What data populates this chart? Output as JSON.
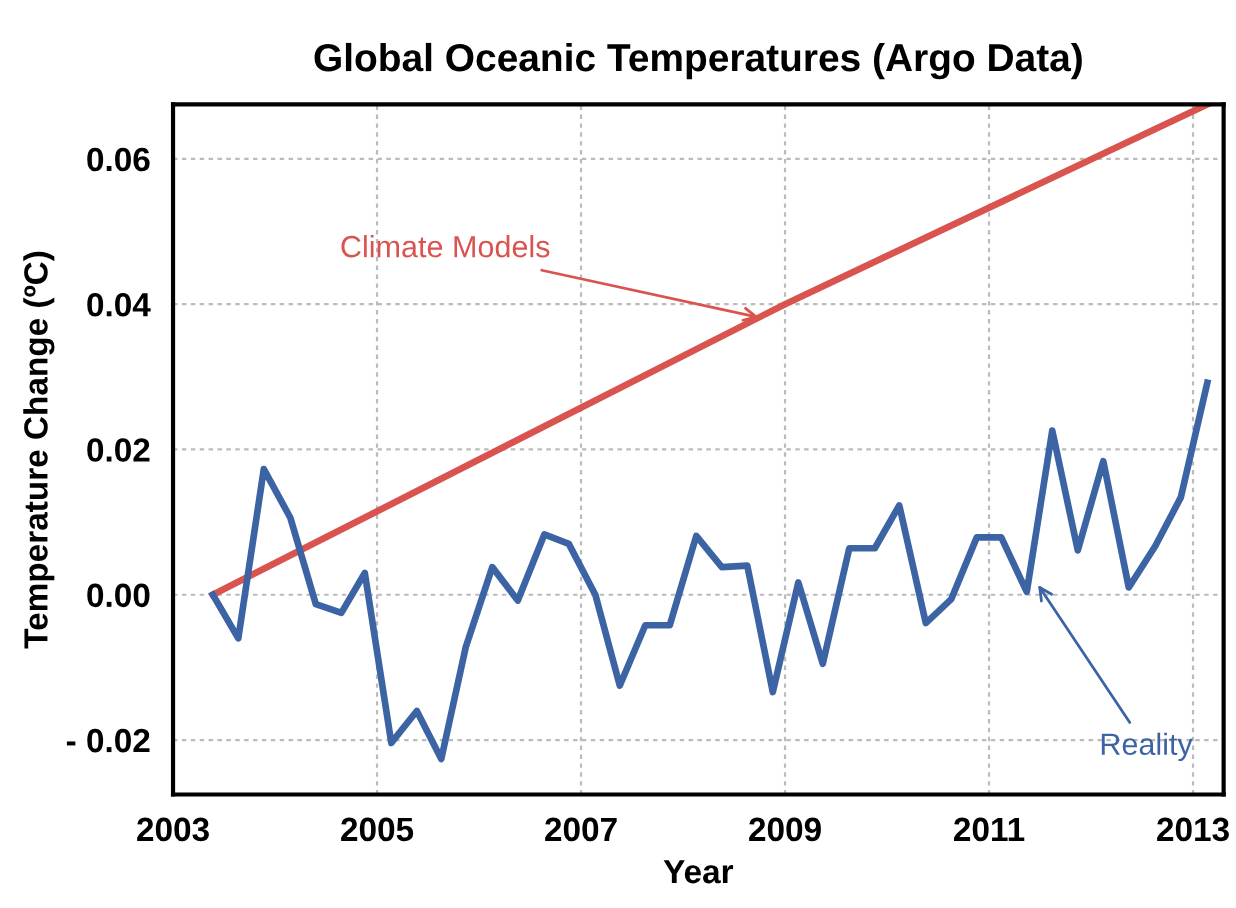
{
  "chart_data": {
    "type": "line",
    "title": "Global Oceanic Temperatures (Argo Data)",
    "xlabel": "Year",
    "ylabel": "Temperature Change (ºC)",
    "xlim": [
      2003,
      2013.3
    ],
    "xticks": [
      2003,
      2005,
      2007,
      2009,
      2011,
      2013
    ],
    "ylim": [
      -0.0275,
      0.0675
    ],
    "yticks": [
      {
        "value": 0.06,
        "label": "0.06"
      },
      {
        "value": 0.04,
        "label": "0.04"
      },
      {
        "value": 0.02,
        "label": "0.02"
      },
      {
        "value": 0,
        "label": "0.00"
      },
      {
        "value": -0.02,
        "label": "- 0.02"
      }
    ],
    "grid": true,
    "legend": false,
    "marker": "none",
    "line_style": "solid",
    "series": [
      {
        "color": "#d9534f",
        "x": [
          2003.39,
          2009.0,
          2013.14
        ],
        "values": [
          0.0,
          0.04,
          0.0675
        ]
      },
      {
        "color": "#3c64a4",
        "x": [
          2003.39,
          2003.64,
          2003.89,
          2004.15,
          2004.4,
          2004.65,
          2004.88,
          2005.14,
          2005.39,
          2005.63,
          2005.87,
          2006.13,
          2006.38,
          2006.64,
          2006.88,
          2007.14,
          2007.38,
          2007.63,
          2007.87,
          2008.13,
          2008.38,
          2008.63,
          2008.88,
          2009.13,
          2009.37,
          2009.63,
          2009.88,
          2010.12,
          2010.38,
          2010.63,
          2010.88,
          2011.12,
          2011.37,
          2011.62,
          2011.87,
          2012.12,
          2012.37,
          2012.63,
          2012.88,
          2013.14
        ],
        "values": [
          0.0,
          -0.006,
          0.0173,
          0.0106,
          -0.0013,
          -0.0025,
          0.003,
          -0.0204,
          -0.016,
          -0.0226,
          -0.0072,
          0.0038,
          -0.0008,
          0.0083,
          0.007,
          0.0,
          -0.0125,
          -0.0042,
          -0.0042,
          0.0081,
          0.0038,
          0.004,
          -0.0134,
          0.0017,
          -0.0095,
          0.0064,
          0.0064,
          0.0123,
          -0.0039,
          -0.0006,
          0.0079,
          0.0079,
          0.0004,
          0.0226,
          0.0061,
          0.0184,
          0.001,
          0.0067,
          0.0134,
          0.0292
        ]
      }
    ],
    "annotations": [
      {
        "text": "Climate Models",
        "x": 2008.8,
        "y": 0.038
      },
      {
        "text": "Reality",
        "x": 2011.45,
        "y": 0.002
      }
    ]
  }
}
